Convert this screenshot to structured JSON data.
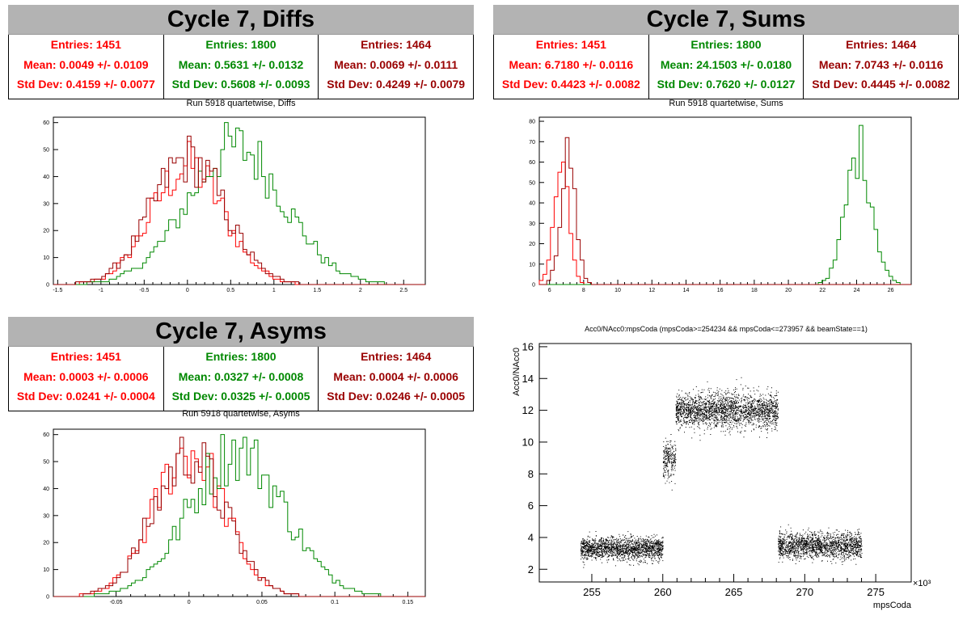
{
  "colors": {
    "s1": "#ff0000",
    "s2": "#008800",
    "s3": "#990000"
  },
  "panels": [
    {
      "title": "Cycle 7, Diffs",
      "subtitle": "Run 5918 quartetwise, Diffs",
      "stats": [
        {
          "entries": "Entries: 1451",
          "mean": "Mean: 0.0049 +/- 0.0109",
          "std": "Std Dev: 0.4159 +/- 0.0077"
        },
        {
          "entries": "Entries: 1800",
          "mean": "Mean: 0.5631 +/- 0.0132",
          "std": "Std Dev: 0.5608 +/- 0.0093"
        },
        {
          "entries": "Entries: 1464",
          "mean": "Mean: 0.0069 +/- 0.0111",
          "std": "Std Dev: 0.4249 +/- 0.0079"
        }
      ]
    },
    {
      "title": "Cycle 7, Sums",
      "subtitle": "Run 5918 quartetwise, Sums",
      "stats": [
        {
          "entries": "Entries: 1451",
          "mean": "Mean: 6.7180 +/- 0.0116",
          "std": "Std Dev: 0.4423 +/- 0.0082"
        },
        {
          "entries": "Entries: 1800",
          "mean": "Mean: 24.1503 +/- 0.0180",
          "std": "Std Dev: 0.7620 +/- 0.0127"
        },
        {
          "entries": "Entries: 1464",
          "mean": "Mean: 7.0743 +/- 0.0116",
          "std": "Std Dev: 0.4445 +/- 0.0082"
        }
      ]
    },
    {
      "title": "Cycle 7, Asyms",
      "subtitle": "Run 5918 quartetwise, Asyms",
      "stats": [
        {
          "entries": "Entries: 1451",
          "mean": "Mean: 0.0003 +/- 0.0006",
          "std": "Std Dev: 0.0241 +/- 0.0004"
        },
        {
          "entries": "Entries: 1800",
          "mean": "Mean: 0.0327 +/- 0.0008",
          "std": "Std Dev: 0.0325 +/- 0.0005"
        },
        {
          "entries": "Entries: 1464",
          "mean": "Mean: 0.0004 +/- 0.0006",
          "std": "Std Dev: 0.0246 +/- 0.0005"
        }
      ]
    }
  ],
  "chart_data": [
    {
      "type": "area",
      "id": "diffs",
      "xlim": [
        -1.55,
        2.75
      ],
      "ylim": [
        0,
        62
      ],
      "xticks": [
        "-1.5",
        "-1",
        "-0.5",
        "0",
        "0.5",
        "1",
        "1.5",
        "2",
        "2.5"
      ],
      "xtick_values": [
        -1.5,
        -1,
        -0.5,
        0,
        0.5,
        1,
        1.5,
        2,
        2.5
      ],
      "yticks": [
        "0",
        "10",
        "20",
        "30",
        "40",
        "50",
        "60"
      ],
      "ytick_values": [
        0,
        10,
        20,
        30,
        40,
        50,
        60
      ],
      "series": [
        {
          "color_key": "s1",
          "mean": 0.0049,
          "std": 0.4159,
          "peak": 53
        },
        {
          "color_key": "s2",
          "mean": 0.5631,
          "std": 0.5608,
          "peak": 60
        },
        {
          "color_key": "s3",
          "mean": 0.0069,
          "std": 0.4249,
          "peak": 55
        }
      ]
    },
    {
      "type": "area",
      "id": "sums",
      "xlim": [
        5.4,
        27.2
      ],
      "ylim": [
        0,
        82
      ],
      "xticks": [
        "6",
        "8",
        "10",
        "12",
        "14",
        "16",
        "18",
        "20",
        "22",
        "24",
        "26"
      ],
      "xtick_values": [
        6,
        8,
        10,
        12,
        14,
        16,
        18,
        20,
        22,
        24,
        26
      ],
      "yticks": [
        "0",
        "10",
        "20",
        "30",
        "40",
        "50",
        "60",
        "70",
        "80"
      ],
      "ytick_values": [
        0,
        10,
        20,
        30,
        40,
        50,
        60,
        70,
        80
      ],
      "series": [
        {
          "color_key": "s1",
          "mean": 6.718,
          "std": 0.4423,
          "peak": 60
        },
        {
          "color_key": "s2",
          "mean": 24.1503,
          "std": 0.762,
          "peak": 78
        },
        {
          "color_key": "s3",
          "mean": 7.0743,
          "std": 0.4445,
          "peak": 72
        }
      ]
    },
    {
      "type": "area",
      "id": "asyms",
      "xlim": [
        -0.093,
        0.162
      ],
      "ylim": [
        0,
        62
      ],
      "xticks": [
        "-0.05",
        "0",
        "0.05",
        "0.1",
        "0.15"
      ],
      "xtick_values": [
        -0.05,
        0,
        0.05,
        0.1,
        0.15
      ],
      "yticks": [
        "0",
        "10",
        "20",
        "30",
        "40",
        "50",
        "60"
      ],
      "ytick_values": [
        0,
        10,
        20,
        30,
        40,
        50,
        60
      ],
      "series": [
        {
          "color_key": "s1",
          "mean": 0.0003,
          "std": 0.0241,
          "peak": 55
        },
        {
          "color_key": "s2",
          "mean": 0.0327,
          "std": 0.0325,
          "peak": 60
        },
        {
          "color_key": "s3",
          "mean": 0.0004,
          "std": 0.0246,
          "peak": 59
        }
      ]
    },
    {
      "type": "scatter",
      "id": "acc0",
      "title": "Acc0/NAcc0:mpsCoda (mpsCoda>=254234 && mpsCoda<=273957 && beamState==1)",
      "xlabel": "mpsCoda",
      "ylabel": "Acc0/NAcc0",
      "xlim": [
        251.3,
        277.5
      ],
      "ylim": [
        1.2,
        16.2
      ],
      "xticks": [
        "255",
        "260",
        "265",
        "270",
        "275"
      ],
      "xtick_values": [
        255,
        260,
        265,
        270,
        275
      ],
      "yticks": [
        "2",
        "4",
        "6",
        "8",
        "10",
        "12",
        "14",
        "16"
      ],
      "ytick_values": [
        2,
        4,
        6,
        8,
        10,
        12,
        14,
        16
      ],
      "x_multiplier": "×10³",
      "clusters": [
        {
          "x_range": [
            254.2,
            260.0
          ],
          "y_center": 3.3,
          "y_spread": 0.35,
          "count": 1800
        },
        {
          "x_range": [
            260.0,
            260.9
          ],
          "y_center": 9.0,
          "y_spread": 0.6,
          "count": 250
        },
        {
          "x_range": [
            260.9,
            268.1
          ],
          "y_center": 12.0,
          "y_spread": 0.55,
          "count": 2300
        },
        {
          "x_range": [
            268.1,
            274.0
          ],
          "y_center": 3.5,
          "y_spread": 0.4,
          "count": 1800
        }
      ]
    }
  ]
}
